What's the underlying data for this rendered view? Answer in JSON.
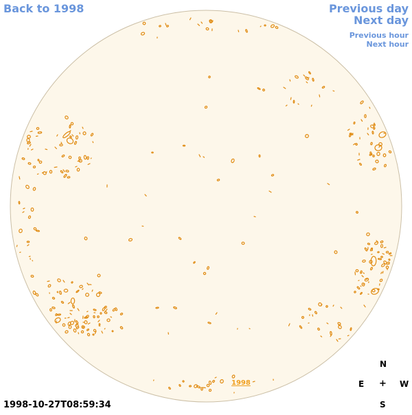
{
  "nav": {
    "back_label": "Back to 1998",
    "prev_day_label": "Previous day",
    "next_day_label": "Next day",
    "prev_hour_label": "Previous hour",
    "next_hour_label": "Next hour"
  },
  "image": {
    "timestamp": "1998-10-27T08:59:34",
    "year_link": "1998"
  },
  "compass": {
    "n": "N",
    "e": "E",
    "center": "+",
    "w": "W",
    "s": "S"
  },
  "colors": {
    "disk_fill": "#fdf7ea",
    "limb": "#cbbfa6",
    "contour": "#e08a10",
    "link": "#6a96dc"
  }
}
